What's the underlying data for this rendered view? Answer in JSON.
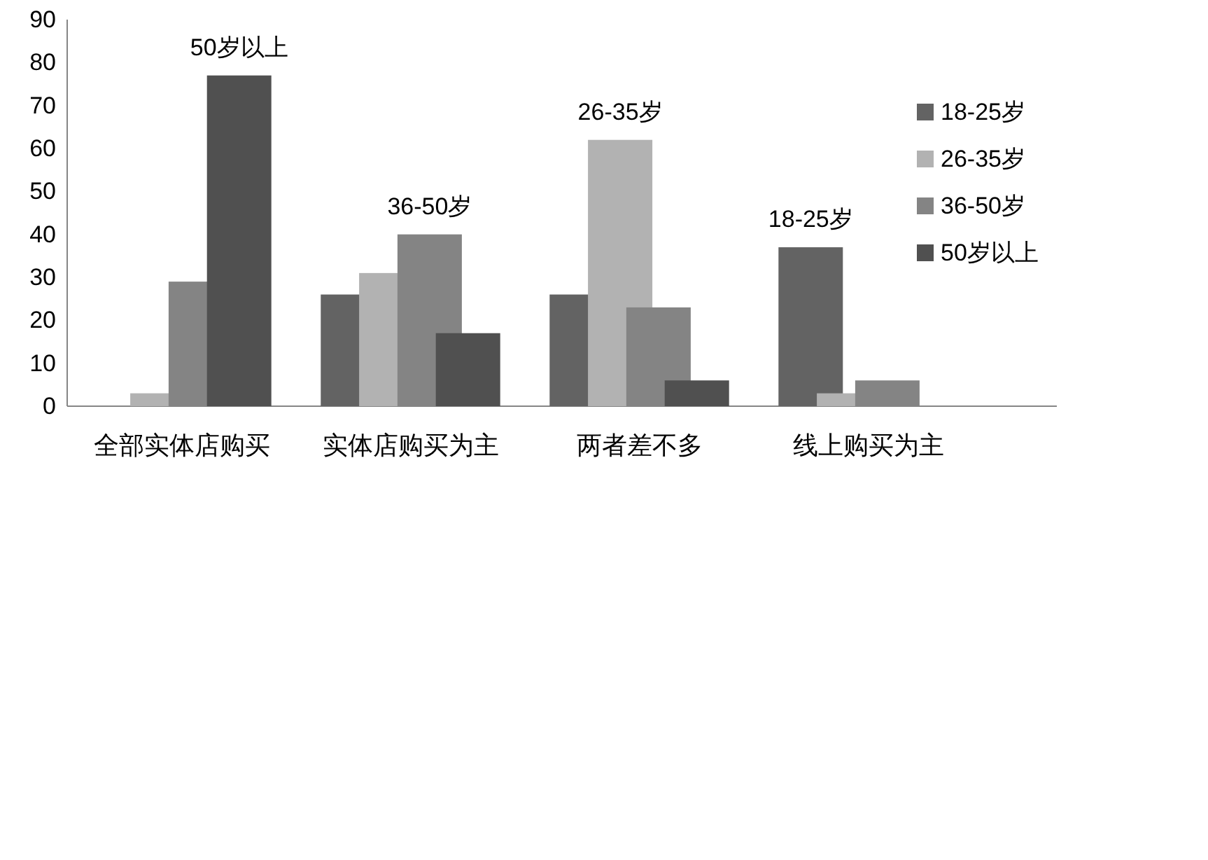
{
  "chart_data": {
    "type": "bar",
    "categories": [
      "全部实体店购买",
      "实体店购买为主",
      "两者差不多",
      "线上购买为主"
    ],
    "series": [
      {
        "name": "18-25岁",
        "color": "#636363",
        "values": [
          0,
          26,
          26,
          37
        ]
      },
      {
        "name": "26-35岁",
        "color": "#b2b2b2",
        "values": [
          3,
          31,
          62,
          3
        ]
      },
      {
        "name": "36-50岁",
        "color": "#848484",
        "values": [
          29,
          40,
          23,
          6
        ]
      },
      {
        "name": "50岁以上",
        "color": "#505050",
        "values": [
          77,
          17,
          6,
          0
        ]
      }
    ],
    "ylim": [
      0,
      90
    ],
    "yticks": [
      0,
      10,
      20,
      30,
      40,
      50,
      60,
      70,
      80,
      90
    ],
    "grid": false,
    "legend": "top right",
    "annotations": [
      "50岁以上",
      "36-50岁",
      "26-35岁",
      "18-25岁"
    ]
  }
}
